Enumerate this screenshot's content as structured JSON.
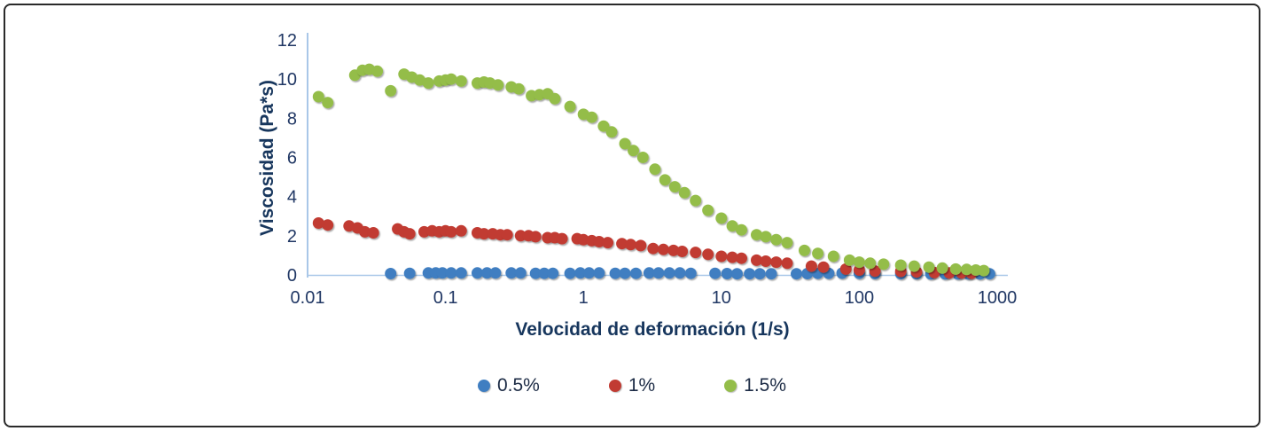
{
  "figure": {
    "background_color": "#ffffff",
    "border_color": "#2a2a2a"
  },
  "chart_data": {
    "type": "scatter",
    "x_scale": "log",
    "xlabel": "Velocidad de deformación (1/s)",
    "ylabel": "Viscosidad (Pa*s)",
    "xlim": [
      0.01,
      1000
    ],
    "ylim": [
      0,
      12
    ],
    "x_ticks": [
      0.01,
      0.1,
      1,
      10,
      100,
      1000
    ],
    "x_tick_labels": [
      "0.01",
      "0.1",
      "1",
      "10",
      "100",
      "1000"
    ],
    "y_ticks": [
      0,
      2,
      4,
      6,
      8,
      10,
      12
    ],
    "grid": false,
    "legend_position": "bottom",
    "axis_line_color": "#a9c7e8",
    "tick_text_color": "#203764",
    "title_text_color": "#17365d",
    "series": [
      {
        "name": "0.5%",
        "color": "#3f7ec1",
        "points": [
          [
            0.04,
            0.07
          ],
          [
            0.055,
            0.08
          ],
          [
            0.075,
            0.1
          ],
          [
            0.085,
            0.1
          ],
          [
            0.095,
            0.1
          ],
          [
            0.11,
            0.1
          ],
          [
            0.13,
            0.1
          ],
          [
            0.17,
            0.1
          ],
          [
            0.2,
            0.1
          ],
          [
            0.23,
            0.1
          ],
          [
            0.3,
            0.1
          ],
          [
            0.35,
            0.1
          ],
          [
            0.45,
            0.08
          ],
          [
            0.52,
            0.08
          ],
          [
            0.6,
            0.08
          ],
          [
            0.8,
            0.08
          ],
          [
            0.95,
            0.1
          ],
          [
            1.1,
            0.1
          ],
          [
            1.3,
            0.1
          ],
          [
            1.7,
            0.08
          ],
          [
            2.0,
            0.08
          ],
          [
            2.4,
            0.08
          ],
          [
            3.0,
            0.1
          ],
          [
            3.5,
            0.1
          ],
          [
            4.2,
            0.1
          ],
          [
            5.0,
            0.1
          ],
          [
            6.0,
            0.08
          ],
          [
            9,
            0.08
          ],
          [
            11,
            0.07
          ],
          [
            13,
            0.06
          ],
          [
            16,
            0.06
          ],
          [
            19,
            0.06
          ],
          [
            23,
            0.06
          ],
          [
            35,
            0.06
          ],
          [
            42,
            0.07
          ],
          [
            50,
            0.08
          ],
          [
            60,
            0.08
          ],
          [
            75,
            0.09
          ],
          [
            100,
            0.08
          ],
          [
            130,
            0.07
          ],
          [
            200,
            0.06
          ],
          [
            260,
            0.06
          ],
          [
            330,
            0.05
          ],
          [
            420,
            0.05
          ],
          [
            520,
            0.05
          ],
          [
            620,
            0.05
          ],
          [
            750,
            0.05
          ],
          [
            880,
            0.06
          ]
        ]
      },
      {
        "name": "1%",
        "color": "#c13b32",
        "points": [
          [
            0.012,
            2.65
          ],
          [
            0.014,
            2.55
          ],
          [
            0.02,
            2.5
          ],
          [
            0.023,
            2.4
          ],
          [
            0.026,
            2.2
          ],
          [
            0.03,
            2.15
          ],
          [
            0.045,
            2.35
          ],
          [
            0.05,
            2.2
          ],
          [
            0.055,
            2.1
          ],
          [
            0.07,
            2.2
          ],
          [
            0.08,
            2.25
          ],
          [
            0.09,
            2.2
          ],
          [
            0.1,
            2.25
          ],
          [
            0.11,
            2.2
          ],
          [
            0.13,
            2.25
          ],
          [
            0.17,
            2.15
          ],
          [
            0.19,
            2.1
          ],
          [
            0.22,
            2.1
          ],
          [
            0.25,
            2.05
          ],
          [
            0.28,
            2.05
          ],
          [
            0.35,
            2.0
          ],
          [
            0.4,
            2.0
          ],
          [
            0.45,
            1.95
          ],
          [
            0.55,
            1.9
          ],
          [
            0.62,
            1.9
          ],
          [
            0.7,
            1.85
          ],
          [
            0.9,
            1.85
          ],
          [
            1.0,
            1.8
          ],
          [
            1.15,
            1.75
          ],
          [
            1.3,
            1.7
          ],
          [
            1.5,
            1.65
          ],
          [
            1.9,
            1.6
          ],
          [
            2.2,
            1.55
          ],
          [
            2.6,
            1.5
          ],
          [
            3.2,
            1.35
          ],
          [
            3.8,
            1.3
          ],
          [
            4.5,
            1.25
          ],
          [
            5.2,
            1.2
          ],
          [
            6.5,
            1.15
          ],
          [
            8,
            1.05
          ],
          [
            10,
            0.95
          ],
          [
            12,
            0.9
          ],
          [
            14,
            0.85
          ],
          [
            18,
            0.75
          ],
          [
            21,
            0.7
          ],
          [
            25,
            0.65
          ],
          [
            30,
            0.6
          ],
          [
            45,
            0.45
          ],
          [
            55,
            0.4
          ],
          [
            80,
            0.3
          ],
          [
            100,
            0.25
          ],
          [
            130,
            0.2
          ],
          [
            200,
            0.18
          ],
          [
            260,
            0.15
          ],
          [
            350,
            0.12
          ],
          [
            450,
            0.1
          ],
          [
            550,
            0.1
          ],
          [
            650,
            0.08
          ]
        ]
      },
      {
        "name": "1.5%",
        "color": "#94bd4a",
        "points": [
          [
            0.012,
            9.1
          ],
          [
            0.014,
            8.8
          ],
          [
            0.022,
            10.2
          ],
          [
            0.025,
            10.45
          ],
          [
            0.028,
            10.5
          ],
          [
            0.032,
            10.4
          ],
          [
            0.04,
            9.4
          ],
          [
            0.05,
            10.25
          ],
          [
            0.057,
            10.1
          ],
          [
            0.065,
            9.95
          ],
          [
            0.075,
            9.8
          ],
          [
            0.09,
            9.9
          ],
          [
            0.1,
            9.95
          ],
          [
            0.11,
            10.0
          ],
          [
            0.13,
            9.9
          ],
          [
            0.17,
            9.8
          ],
          [
            0.19,
            9.85
          ],
          [
            0.21,
            9.8
          ],
          [
            0.24,
            9.7
          ],
          [
            0.3,
            9.6
          ],
          [
            0.34,
            9.5
          ],
          [
            0.42,
            9.15
          ],
          [
            0.48,
            9.2
          ],
          [
            0.55,
            9.25
          ],
          [
            0.62,
            9.0
          ],
          [
            0.8,
            8.6
          ],
          [
            1.0,
            8.2
          ],
          [
            1.15,
            8.05
          ],
          [
            1.4,
            7.6
          ],
          [
            1.6,
            7.3
          ],
          [
            2.0,
            6.7
          ],
          [
            2.3,
            6.35
          ],
          [
            2.7,
            6.0
          ],
          [
            3.3,
            5.4
          ],
          [
            3.9,
            4.85
          ],
          [
            4.6,
            4.5
          ],
          [
            5.4,
            4.2
          ],
          [
            6.5,
            3.8
          ],
          [
            8,
            3.3
          ],
          [
            10,
            2.9
          ],
          [
            12,
            2.5
          ],
          [
            14,
            2.3
          ],
          [
            18,
            2.05
          ],
          [
            21,
            1.95
          ],
          [
            25,
            1.8
          ],
          [
            30,
            1.65
          ],
          [
            40,
            1.25
          ],
          [
            50,
            1.1
          ],
          [
            65,
            0.95
          ],
          [
            85,
            0.75
          ],
          [
            100,
            0.65
          ],
          [
            120,
            0.6
          ],
          [
            150,
            0.55
          ],
          [
            200,
            0.5
          ],
          [
            250,
            0.45
          ],
          [
            320,
            0.4
          ],
          [
            400,
            0.35
          ],
          [
            500,
            0.3
          ],
          [
            600,
            0.28
          ],
          [
            700,
            0.25
          ],
          [
            800,
            0.22
          ]
        ]
      }
    ]
  }
}
